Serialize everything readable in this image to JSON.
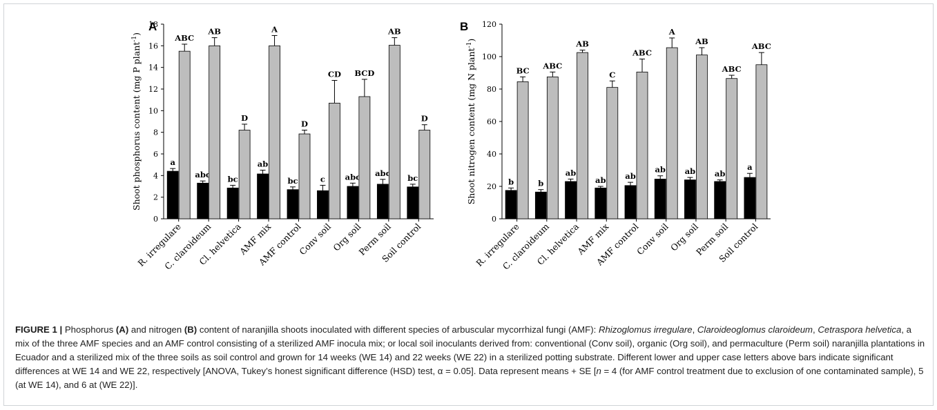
{
  "chart_data": [
    {
      "type": "bar",
      "panel": "A",
      "ylabel": "Shoot phosphorus content (mg P plant",
      "ylabel_sup": "-1",
      "ylabel_tail": ")",
      "ylim": [
        0,
        18
      ],
      "yticks": [
        0,
        2,
        4,
        6,
        8,
        10,
        12,
        14,
        16,
        18
      ],
      "categories": [
        "R. irregulare",
        "C. claroideum",
        "Cl. helvetica",
        "AMF mix",
        "AMF control",
        "Conv soil",
        "Org soil",
        "Perm soil",
        "Soil control"
      ],
      "series": [
        {
          "color": "#000000",
          "values": [
            4.4,
            3.3,
            2.85,
            4.15,
            2.7,
            2.6,
            3.0,
            3.2,
            2.95
          ],
          "errors": [
            0.25,
            0.2,
            0.25,
            0.35,
            0.25,
            0.5,
            0.3,
            0.45,
            0.25
          ],
          "letters": [
            "a",
            "abc",
            "bc",
            "ab",
            "bc",
            "c",
            "abc",
            "abc",
            "bc"
          ]
        },
        {
          "color": "#bdbdbd",
          "values": [
            15.5,
            16.0,
            8.2,
            16.0,
            7.85,
            10.7,
            11.3,
            16.05,
            8.2
          ],
          "errors": [
            0.65,
            0.75,
            0.55,
            0.95,
            0.35,
            2.1,
            1.6,
            0.7,
            0.5
          ],
          "letters": [
            "ABC",
            "AB",
            "D",
            "A",
            "D",
            "CD",
            "BCD",
            "AB",
            "D"
          ]
        }
      ]
    },
    {
      "type": "bar",
      "panel": "B",
      "ylabel": "Shoot nitrogen content (mg N plant",
      "ylabel_sup": "-1",
      "ylabel_tail": ")",
      "ylim": [
        0,
        120
      ],
      "yticks": [
        0,
        20,
        40,
        60,
        80,
        100,
        120
      ],
      "categories": [
        "R. irregulare",
        "C. claroideum",
        "Cl. helvetica",
        "AMF mix",
        "AMF control",
        "Conv soil",
        "Org soil",
        "Perm soil",
        "Soil control"
      ],
      "series": [
        {
          "color": "#000000",
          "values": [
            17.5,
            16.5,
            23.0,
            19.0,
            20.5,
            24.5,
            24.0,
            23.0,
            25.5
          ],
          "errors": [
            1.5,
            1.5,
            1.5,
            1.0,
            2.0,
            2.0,
            1.5,
            1.0,
            2.5
          ],
          "letters": [
            "b",
            "b",
            "ab",
            "ab",
            "ab",
            "ab",
            "ab",
            "ab",
            "a"
          ]
        },
        {
          "color": "#bdbdbd",
          "values": [
            84.5,
            87.5,
            102.5,
            81.0,
            90.5,
            105.5,
            101.0,
            86.5,
            95.0
          ],
          "errors": [
            3.0,
            3.0,
            1.5,
            4.0,
            8.0,
            6.0,
            4.5,
            2.0,
            7.5
          ],
          "letters": [
            "BC",
            "ABC",
            "AB",
            "C",
            "ABC",
            "A",
            "AB",
            "ABC",
            "ABC"
          ]
        }
      ]
    }
  ],
  "caption": {
    "label": "FIGURE 1 |",
    "t1": " Phosphorus ",
    "b1": "(A)",
    "t2": " and nitrogen ",
    "b2": "(B)",
    "t3": " content of naranjilla shoots inoculated with different species of arbuscular mycorrhizal fungi (AMF): ",
    "i1": "Rhizoglomus irregulare",
    "t4": ", ",
    "i2": "Claroideoglomus claroideum",
    "t5": ", ",
    "i3": "Cetraspora helvetica",
    "t6": ", a mix of the three AMF species and an AMF control consisting of a sterilized AMF inocula mix; or local soil inoculants derived from: conventional (Conv soil), organic (Org soil), and permaculture (Perm soil) naranjilla plantations in Ecuador and a sterilized mix of the three soils as soil control and grown for 14 weeks (WE 14) and 22 weeks (WE 22) in a sterilized potting substrate. Different lower and upper case letters above bars indicate significant differences at WE 14 and WE 22, respectively [ANOVA, Tukey’s honest significant difference (HSD) test, α = 0.05]. Data represent means + SE [",
    "i4": "n",
    "t7": " = 4 (for AMF control treatment due to exclusion of one contaminated sample), 5 (at WE 14), and 6 at (WE 22)]."
  }
}
